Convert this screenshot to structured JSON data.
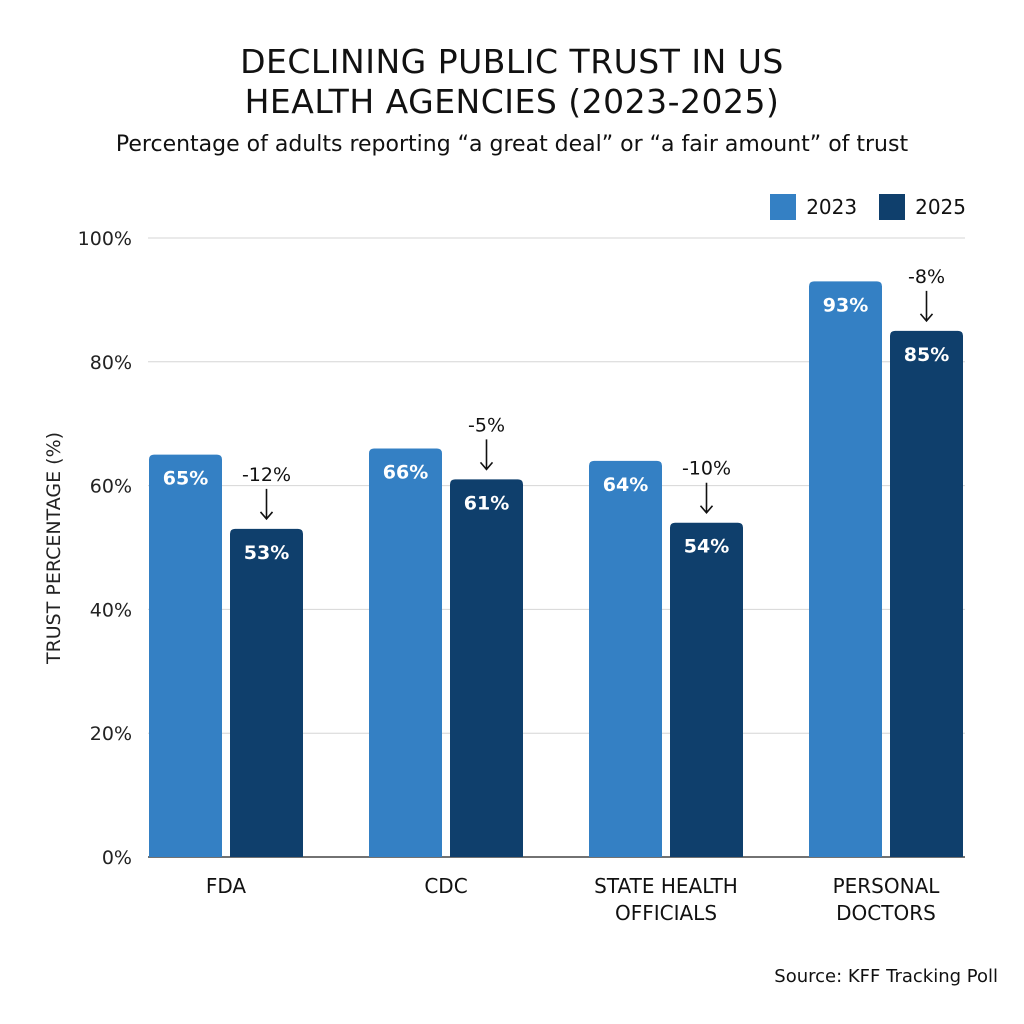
{
  "chart_data": {
    "type": "bar",
    "title_lines": [
      "DECLINING PUBLIC TRUST IN US",
      "HEALTH AGENCIES (2023-2025)"
    ],
    "subtitle": "Percentage of adults reporting “a great deal” or “a fair amount” of trust",
    "ylabel": "TRUST PERCENTAGE (%)",
    "xlabel": "",
    "ylim": [
      0,
      100
    ],
    "yticks": [
      0,
      20,
      40,
      60,
      80,
      100
    ],
    "ytick_labels": [
      "0%",
      "20%",
      "40%",
      "60%",
      "80%",
      "100%"
    ],
    "grid": true,
    "legend_position": "top-right",
    "categories": [
      [
        "FDA"
      ],
      [
        "CDC"
      ],
      [
        "STATE HEALTH",
        "OFFICIALS"
      ],
      [
        "PERSONAL",
        "DOCTORS"
      ]
    ],
    "series": [
      {
        "name": "2023",
        "color": "#3480c4",
        "values": [
          65,
          66,
          64,
          93
        ],
        "labels": [
          "65%",
          "66%",
          "64%",
          "93%"
        ]
      },
      {
        "name": "2025",
        "color": "#0f3f6c",
        "values": [
          53,
          61,
          54,
          85
        ],
        "labels": [
          "53%",
          "61%",
          "54%",
          "85%"
        ]
      }
    ],
    "change_annotations": [
      "-12%",
      "-5%",
      "-10%",
      "-8%"
    ],
    "source": "Source: KFF Tracking Poll"
  }
}
